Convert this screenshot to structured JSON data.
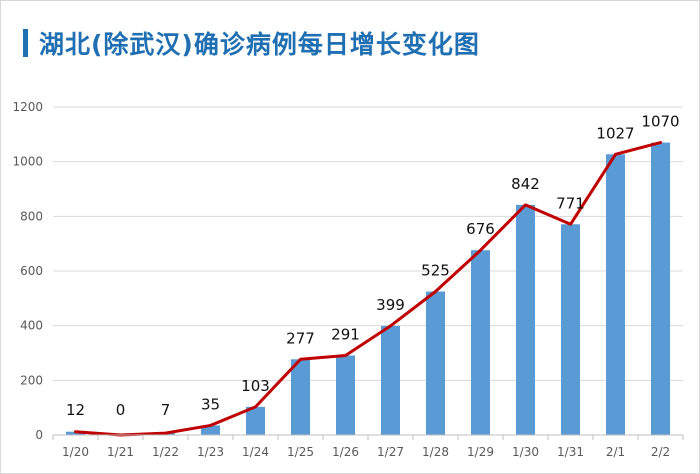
{
  "chart_data": {
    "type": "bar",
    "title": "湖北(除武汉)确诊病例每日增长变化图",
    "categories": [
      "1/20",
      "1/21",
      "1/22",
      "1/23",
      "1/24",
      "1/25",
      "1/26",
      "1/27",
      "1/28",
      "1/29",
      "1/30",
      "1/31",
      "2/1",
      "2/2"
    ],
    "values": [
      12,
      0,
      7,
      35,
      103,
      277,
      291,
      399,
      525,
      676,
      842,
      771,
      1027,
      1070
    ],
    "line_overlay": true,
    "ylim": [
      0,
      1200
    ],
    "yticks": [
      0,
      200,
      400,
      600,
      800,
      1000,
      1200
    ],
    "grid": true,
    "legend": "none",
    "colors": {
      "bar": "#5b9bd5",
      "line": "#c00000",
      "title": "#1f6fb2",
      "grid": "#d9d9d9"
    }
  }
}
